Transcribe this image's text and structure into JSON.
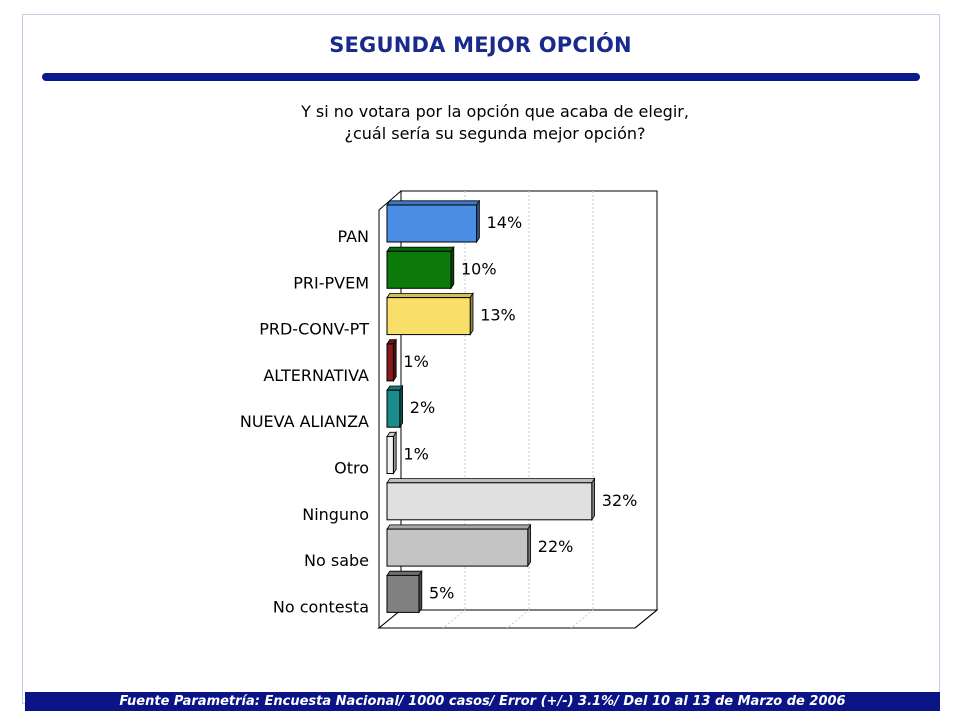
{
  "title": "SEGUNDA MEJOR OPCIÓN",
  "question": {
    "line1": "Y si no votara por la opción que acaba de elegir,",
    "line2": "¿cuál sería su segunda mejor opción?"
  },
  "footer": "Fuente Parametría: Encuesta Nacional/ 1000 casos/ Error (+/-) 3.1%/ Del 10 al 13 de Marzo  de 2006",
  "chart_data": {
    "type": "bar",
    "orientation": "horizontal",
    "categories": [
      "PAN",
      "PRI-PVEM",
      "PRD-CONV-PT",
      "ALTERNATIVA",
      "NUEVA ALIANZA",
      "Otro",
      "Ninguno",
      "No sabe",
      "No contesta"
    ],
    "values": [
      14,
      10,
      13,
      1,
      2,
      1,
      32,
      22,
      5
    ],
    "data_labels": [
      "14%",
      "10%",
      "13%",
      "1%",
      "2%",
      "1%",
      "32%",
      "22%",
      "5%"
    ],
    "colors": [
      "#4a8ee6",
      "#0b7a0b",
      "#f7df6a",
      "#8c1a1a",
      "#1a8c8c",
      "#f2f2f2",
      "#e0e0e0",
      "#c4c4c4",
      "#808080"
    ],
    "xlim": [
      0,
      40
    ],
    "xlabel": "",
    "ylabel": "",
    "grid": true,
    "style": "3d"
  }
}
